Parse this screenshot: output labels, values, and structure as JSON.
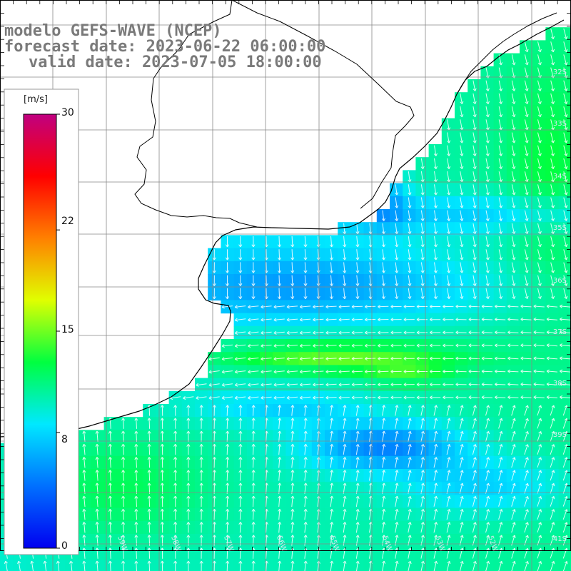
{
  "title": {
    "model": "modelo GEFS-WAVE (NCEP)",
    "forecast": "forecast date: 2023-06-22 06:00:00",
    "valid": "valid date: 2023-07-05 18:00:00"
  },
  "colorbar": {
    "unit": "[m/s]",
    "ticks": [
      "30",
      "22",
      "15",
      "8",
      "0"
    ],
    "tick_values": [
      30,
      22,
      15,
      8,
      0
    ],
    "range": [
      0,
      30
    ],
    "colors": [
      "#0000f0",
      "#0070ff",
      "#00e8ff",
      "#00ff40",
      "#e0ff00",
      "#ff8000",
      "#ff0000",
      "#c00080"
    ]
  },
  "lat_labels": [
    "32S",
    "33S",
    "34S",
    "35S",
    "36S",
    "37S",
    "38S",
    "39S",
    "41S"
  ],
  "lon_labels": [
    "61W",
    "60W",
    "59W",
    "58W",
    "57W",
    "56W",
    "55W",
    "54W",
    "53W",
    "52W"
  ],
  "colors": {
    "land": "#ffffff",
    "coast": "#000000",
    "grid": "#888888",
    "arrow": "#ffffff"
  }
}
